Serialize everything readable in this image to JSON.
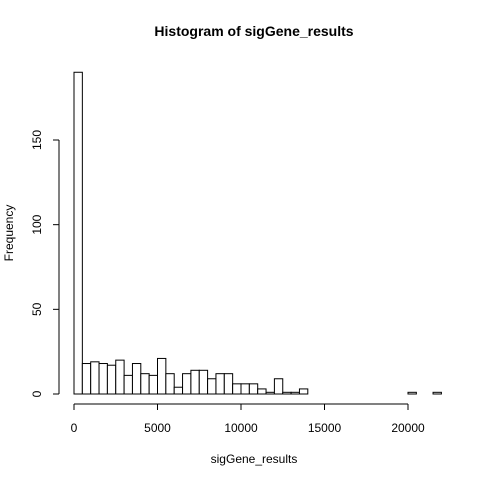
{
  "chart_data": {
    "type": "bar",
    "title": "Histogram of sigGene_results",
    "xlabel": "sigGene_results",
    "ylabel": "Frequency",
    "bin_width": 500,
    "bin_start": 0,
    "values": [
      190,
      18,
      19,
      18,
      17,
      20,
      11,
      18,
      12,
      11,
      21,
      12,
      4,
      12,
      14,
      14,
      9,
      12,
      12,
      6,
      6,
      6,
      3,
      1,
      9,
      1,
      1,
      3,
      0,
      0,
      0,
      0,
      0,
      0,
      0,
      0,
      0,
      0,
      0,
      0,
      1,
      0,
      0,
      1
    ],
    "xlim": [
      0,
      22000
    ],
    "ylim": [
      0,
      190
    ],
    "x_ticks": [
      0,
      5000,
      10000,
      15000,
      20000
    ],
    "x_tick_labels": [
      "0",
      "5000",
      "10000",
      "15000",
      "20000"
    ],
    "y_ticks": [
      0,
      50,
      100,
      150
    ],
    "y_tick_labels": [
      "0",
      "50",
      "100",
      "150"
    ],
    "bar_fill": "#ffffff",
    "bar_stroke": "#000000"
  }
}
